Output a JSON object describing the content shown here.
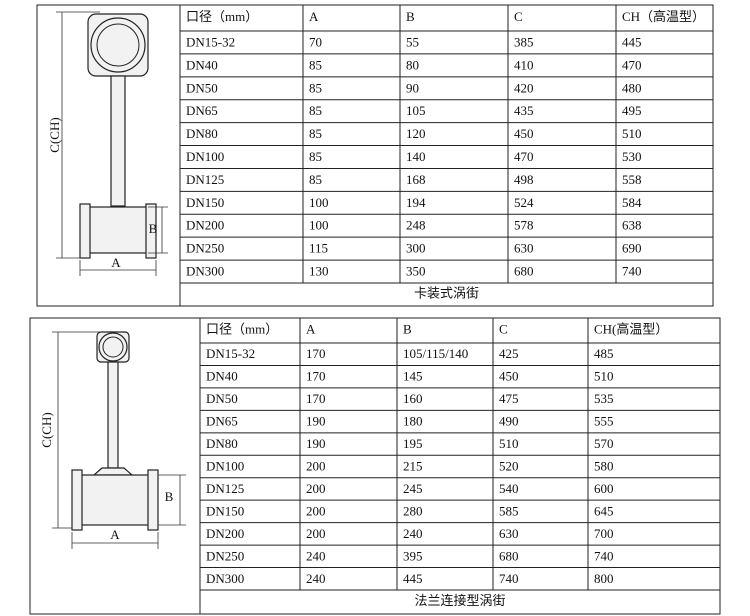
{
  "tables": [
    {
      "diagram": {
        "height_label": "C(CH)",
        "b_label": "B",
        "a_label": "A"
      },
      "header": [
        "口径（mm）",
        "A",
        "B",
        "C",
        "CH（高温型）"
      ],
      "rows": [
        [
          "DN15-32",
          "70",
          "55",
          "385",
          "445"
        ],
        [
          "DN40",
          "85",
          "80",
          "410",
          "470"
        ],
        [
          "DN50",
          "85",
          "90",
          "420",
          "480"
        ],
        [
          "DN65",
          "85",
          "105",
          "435",
          "495"
        ],
        [
          "DN80",
          "85",
          "120",
          "450",
          "510"
        ],
        [
          "DN100",
          "85",
          "140",
          "470",
          "530"
        ],
        [
          "DN125",
          "85",
          "168",
          "498",
          "558"
        ],
        [
          "DN150",
          "100",
          "194",
          "524",
          "584"
        ],
        [
          "DN200",
          "100",
          "248",
          "578",
          "638"
        ],
        [
          "DN250",
          "115",
          "300",
          "630",
          "690"
        ],
        [
          "DN300",
          "130",
          "350",
          "680",
          "740"
        ]
      ],
      "caption": "卡装式涡街"
    },
    {
      "diagram": {
        "height_label": "C(CH)",
        "b_label": "B",
        "a_label": "A"
      },
      "header": [
        "口径（mm）",
        "A",
        "B",
        "C",
        "CH(高温型）"
      ],
      "rows": [
        [
          "DN15-32",
          "170",
          "105/115/140",
          "425",
          "485"
        ],
        [
          "DN40",
          "170",
          "145",
          "450",
          "510"
        ],
        [
          "DN50",
          "170",
          "160",
          "475",
          "535"
        ],
        [
          "DN65",
          "190",
          "180",
          "490",
          "555"
        ],
        [
          "DN80",
          "190",
          "195",
          "510",
          "570"
        ],
        [
          "DN100",
          "200",
          "215",
          "520",
          "580"
        ],
        [
          "DN125",
          "200",
          "245",
          "540",
          "600"
        ],
        [
          "DN150",
          "200",
          "280",
          "585",
          "645"
        ],
        [
          "DN200",
          "200",
          "240",
          "630",
          "700"
        ],
        [
          "DN250",
          "240",
          "395",
          "680",
          "740"
        ],
        [
          "DN300",
          "240",
          "445",
          "740",
          "800"
        ]
      ],
      "caption": "法兰连接型涡街"
    }
  ]
}
